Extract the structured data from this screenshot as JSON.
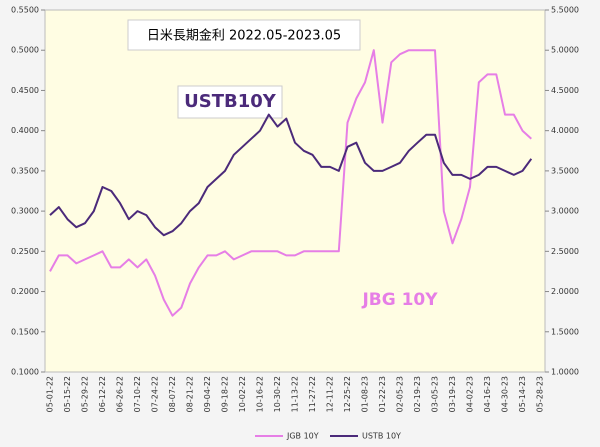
{
  "chart_data": {
    "type": "line",
    "title": "日米長期金利 2022.05-2023.05",
    "annotations": [
      "USTB10Y",
      "JBG 10Y"
    ],
    "categories": [
      "05-01-22",
      null,
      "05-15-22",
      null,
      "05-29-22",
      null,
      "06-12-22",
      null,
      "06-26-22",
      null,
      "07-10-22",
      null,
      "07-24-22",
      null,
      "08-07-22",
      null,
      "08-21-22",
      null,
      "09-04-22",
      null,
      "09-18-22",
      null,
      "10-02-22",
      null,
      "10-16-22",
      null,
      "10-30-22",
      null,
      "11-13-22",
      null,
      "11-27-22",
      null,
      "12-11-22",
      null,
      "12-25-22",
      null,
      "01-08-23",
      null,
      "01-22-23",
      null,
      "02-05-23",
      null,
      "02-19-23",
      null,
      "03-05-23",
      null,
      "03-19-23",
      null,
      "04-02-23",
      null,
      "04-16-23",
      null,
      "04-30-23",
      null,
      "05-14-23",
      null,
      "05-28-23"
    ],
    "series": [
      {
        "name": "JGB 10Y",
        "color": "#e67ee6",
        "values": [
          0.225,
          0.245,
          0.245,
          0.235,
          0.24,
          0.245,
          0.25,
          0.23,
          0.23,
          0.24,
          0.23,
          0.24,
          0.22,
          0.19,
          0.17,
          0.18,
          0.21,
          0.23,
          0.245,
          0.245,
          0.25,
          0.24,
          0.245,
          0.25,
          0.25,
          0.25,
          0.25,
          0.245,
          0.245,
          0.25,
          0.25,
          0.25,
          0.25,
          0.25,
          0.41,
          0.44,
          0.46,
          0.5,
          0.41,
          0.485,
          0.495,
          0.5,
          0.5,
          0.5,
          0.5,
          0.3,
          0.26,
          0.29,
          0.33,
          0.46,
          0.47,
          0.47,
          0.42,
          0.42,
          0.4,
          0.39,
          null
        ]
      },
      {
        "name": "USTB 10Y",
        "color": "#4b2a7a",
        "axis": "y2",
        "values": [
          2.95,
          3.05,
          2.9,
          2.8,
          2.85,
          3.0,
          3.3,
          3.25,
          3.1,
          2.9,
          3.0,
          2.95,
          2.8,
          2.7,
          2.75,
          2.85,
          3.0,
          3.1,
          3.3,
          3.4,
          3.5,
          3.7,
          3.8,
          3.9,
          4.0,
          4.2,
          4.05,
          4.15,
          3.85,
          3.75,
          3.7,
          3.55,
          3.55,
          3.5,
          3.8,
          3.85,
          3.6,
          3.5,
          3.5,
          3.55,
          3.6,
          3.75,
          3.85,
          3.95,
          3.95,
          3.6,
          3.45,
          3.45,
          3.4,
          3.45,
          3.55,
          3.55,
          3.5,
          3.45,
          3.5,
          3.65,
          null
        ]
      }
    ],
    "ylim": [
      0.1,
      0.55
    ],
    "yticks": [
      {
        "value": 0.1,
        "label": "0.1000"
      },
      {
        "value": 0.15,
        "label": "0.1500"
      },
      {
        "value": 0.2,
        "label": "0.2000"
      },
      {
        "value": 0.25,
        "label": "0.2500"
      },
      {
        "value": 0.3,
        "label": "0.3000"
      },
      {
        "value": 0.35,
        "label": "0.3500"
      },
      {
        "value": 0.4,
        "label": "0.4000"
      },
      {
        "value": 0.45,
        "label": "0.4500"
      },
      {
        "value": 0.5,
        "label": "0.5000"
      },
      {
        "value": 0.55,
        "label": "0.5500"
      }
    ],
    "y2lim": [
      1,
      5.5
    ],
    "y2ticks": [
      {
        "value": 1,
        "label": "1.0000"
      },
      {
        "value": 1.5,
        "label": "1.5000"
      },
      {
        "value": 2,
        "label": "2.0000"
      },
      {
        "value": 2.5,
        "label": "2.5000"
      },
      {
        "value": 3,
        "label": "3.0000"
      },
      {
        "value": 3.5,
        "label": "3.5000"
      },
      {
        "value": 4,
        "label": "4.0000"
      },
      {
        "value": 4.5,
        "label": "4.5000"
      },
      {
        "value": 5,
        "label": "5.0000"
      },
      {
        "value": 5.5,
        "label": "5.5000"
      }
    ],
    "legend": "bottom"
  }
}
